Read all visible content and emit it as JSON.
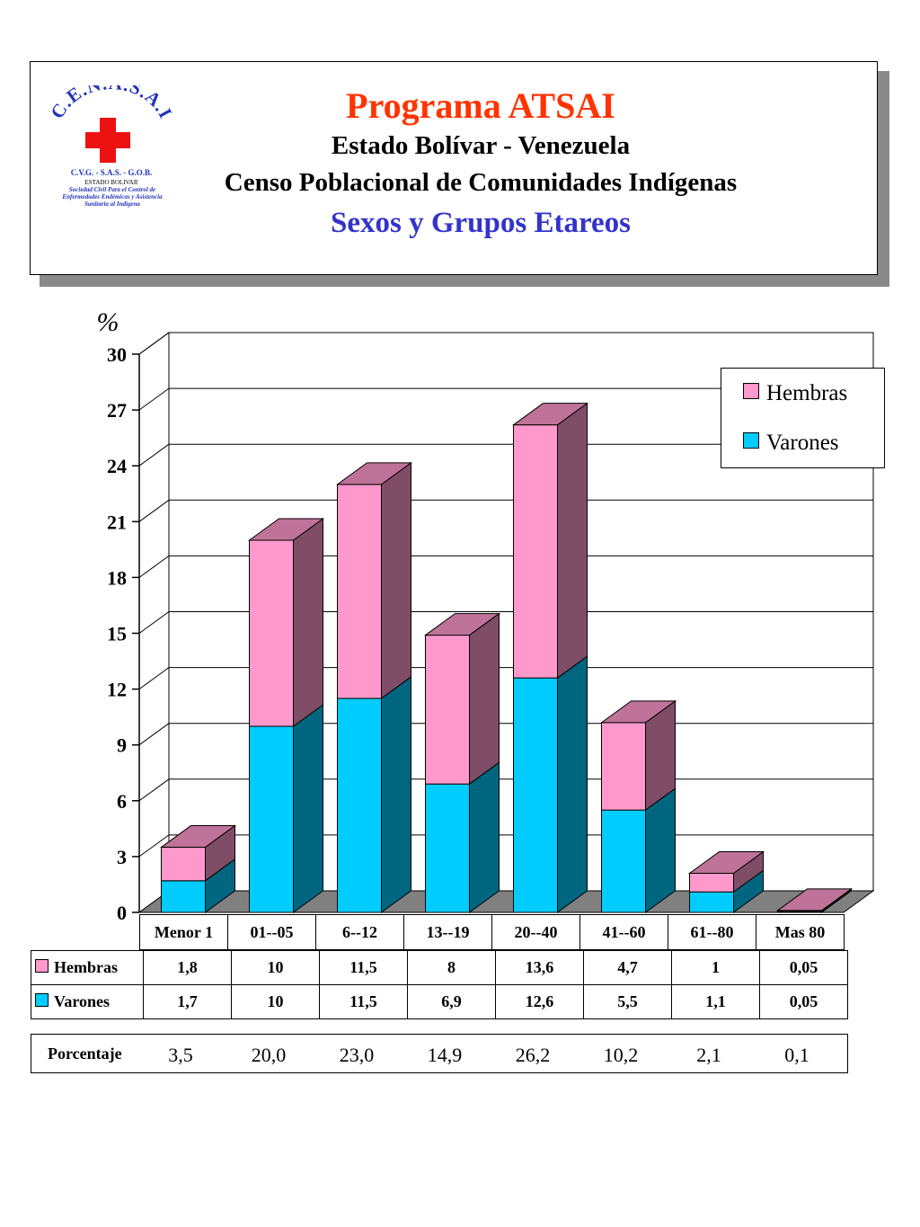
{
  "header": {
    "logo_text": "C.E.N.A.S.A.I",
    "logo_sub1": "C.V.G. - S.A.S. - G.O.B.",
    "logo_sub2": "ESTADO BOLIVAR",
    "logo_sub3": "Sociedad Civil Para el Control de Enfermedades Endémicas y Asistencia Sanitaria al Indígena",
    "title": "Programa ATSAI",
    "line2": "Estado Bolívar - Venezuela",
    "line3": "Censo Poblacional de Comunidades Indígenas",
    "subtitle": "Sexos y Grupos Etareos"
  },
  "colors": {
    "hembras": "#ff99cc",
    "varones": "#00ccff",
    "title": "#ff3300",
    "subtitle": "#3333cc",
    "logo_blue": "#2233bb",
    "logo_red": "#ee1111"
  },
  "chart_data": {
    "type": "bar",
    "stacked": true,
    "three_d": true,
    "ylabel": "%",
    "ylim": [
      0,
      30
    ],
    "yticks": [
      0,
      3,
      6,
      9,
      12,
      15,
      18,
      21,
      24,
      27,
      30
    ],
    "grid": true,
    "legend_position": "top-right",
    "categories": [
      "Menor 1",
      "01--05",
      "6--12",
      "13--19",
      "20--40",
      "41--60",
      "61--80",
      "Mas 80"
    ],
    "series": [
      {
        "name": "Hembras",
        "values": [
          1.8,
          10,
          11.5,
          8,
          13.6,
          4.7,
          1,
          0.05
        ]
      },
      {
        "name": "Varones",
        "values": [
          1.7,
          10,
          11.5,
          6.9,
          12.6,
          5.5,
          1.1,
          0.05
        ]
      }
    ]
  },
  "table": {
    "hembras_label": "Hembras",
    "varones_label": "Varones",
    "hembras_values": [
      "1,8",
      "10",
      "11,5",
      "8",
      "13,6",
      "4,7",
      "1",
      "0,05"
    ],
    "varones_values": [
      "1,7",
      "10",
      "11,5",
      "6,9",
      "12,6",
      "5,5",
      "1,1",
      "0,05"
    ]
  },
  "percent": {
    "label": "Porcentaje",
    "values": [
      "3,5",
      "20,0",
      "23,0",
      "14,9",
      "26,2",
      "10,2",
      "2,1",
      "0,1"
    ]
  }
}
